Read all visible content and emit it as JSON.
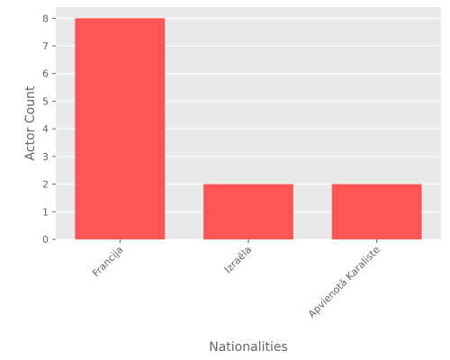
{
  "chart_data": {
    "type": "bar",
    "categories": [
      "Francija",
      "Izraēla",
      "Apvienotā Karaliste"
    ],
    "values": [
      8,
      2,
      2
    ],
    "xlabel": "Nationalities",
    "ylabel": "Actor Count",
    "ylim": [
      0,
      8.4
    ],
    "yticks": [
      0,
      1,
      2,
      3,
      4,
      5,
      6,
      7,
      8
    ],
    "grid": true,
    "bar_color": "#ff5555",
    "background_color": "#e9e9e9",
    "grid_color": "#ffffff"
  }
}
